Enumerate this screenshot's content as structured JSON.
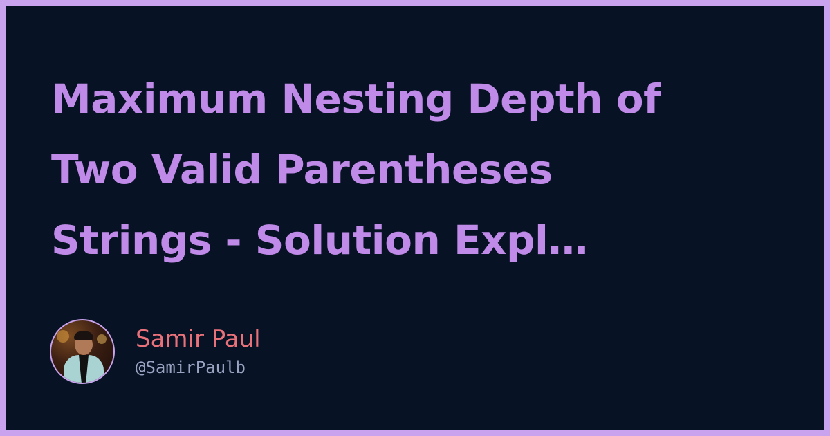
{
  "title_lines": [
    "Maximum Nesting Depth of",
    "Two Valid Parentheses",
    "Strings - Solution Expl…"
  ],
  "author": {
    "name": "Samir Paul",
    "handle": "@SamirPaulb"
  },
  "colors": {
    "border": "#c9a3ee",
    "background": "#071325",
    "title": "#c08ae8",
    "author_name": "#e9717a",
    "author_handle": "#9ba3c2"
  }
}
